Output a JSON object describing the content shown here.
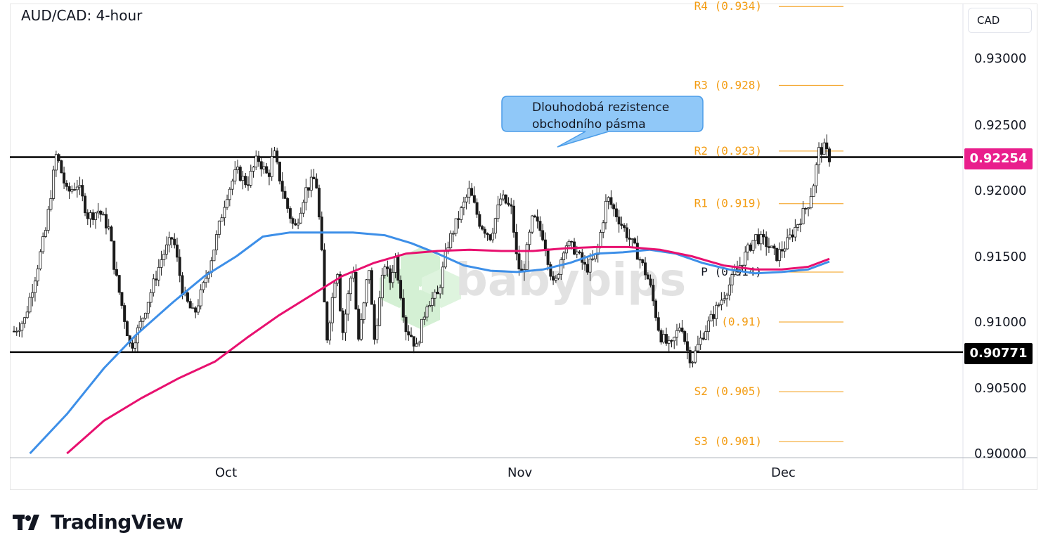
{
  "title": "AUD/CAD: 4-hour",
  "currency_label": "CAD",
  "brand": "TradingView",
  "watermark": "babypips",
  "colors": {
    "up_candle": "#1b1b1b",
    "ma_fast": "#3d8fe8",
    "ma_slow": "#e8106f",
    "pivot": "#f39c12",
    "callout_fill": "#90c8f8",
    "callout_border": "#4a9ce8",
    "current_price_bg": "#e91e8c",
    "support_badge_bg": "#000000"
  },
  "callout": {
    "line1": "Dlouhodobá rezistence",
    "line2": "obchodního pásma"
  },
  "badges": {
    "current_price": "0.92254",
    "support_level": "0.90771"
  },
  "chart_data": {
    "type": "line",
    "title": "AUD/CAD: 4-hour",
    "y_axis": {
      "ylim": [
        0.9,
        0.9355
      ],
      "ticks": [
        "0.93000",
        "0.92500",
        "0.92000",
        "0.91500",
        "0.91000",
        "0.90500",
        "0.90000"
      ]
    },
    "x_axis": {
      "ticks": [
        "Oct",
        "Nov",
        "Dec"
      ]
    },
    "horizontal_levels": [
      {
        "name": "resistance",
        "value": 0.92254
      },
      {
        "name": "support",
        "value": 0.90771
      }
    ],
    "pivot_levels": [
      {
        "label": "R4 (0.934)",
        "value": 0.934
      },
      {
        "label": "R3 (0.928)",
        "value": 0.928
      },
      {
        "label": "R2 (0.923)",
        "value": 0.923
      },
      {
        "label": "R1 (0.919)",
        "value": 0.919
      },
      {
        "label": "P (0.914)",
        "value": 0.9138
      },
      {
        "label": "(0.91)",
        "value": 0.91
      },
      {
        "label": "S2 (0.905)",
        "value": 0.9047
      },
      {
        "label": "S3 (0.901)",
        "value": 0.9009
      }
    ],
    "price_path": [
      [
        0,
        0.9093
      ],
      [
        2,
        0.9102
      ],
      [
        4,
        0.9135
      ],
      [
        6,
        0.917
      ],
      [
        8,
        0.9228
      ],
      [
        10,
        0.9198
      ],
      [
        12,
        0.9205
      ],
      [
        14,
        0.918
      ],
      [
        16,
        0.9185
      ],
      [
        18,
        0.917
      ],
      [
        19,
        0.914
      ],
      [
        21,
        0.91
      ],
      [
        22,
        0.908
      ],
      [
        24,
        0.91
      ],
      [
        26,
        0.9125
      ],
      [
        28,
        0.915
      ],
      [
        30,
        0.9165
      ],
      [
        32,
        0.912
      ],
      [
        34,
        0.9105
      ],
      [
        36,
        0.913
      ],
      [
        38,
        0.916
      ],
      [
        40,
        0.9195
      ],
      [
        42,
        0.9215
      ],
      [
        44,
        0.9205
      ],
      [
        46,
        0.9225
      ],
      [
        48,
        0.921
      ],
      [
        49,
        0.923
      ],
      [
        51,
        0.9195
      ],
      [
        53,
        0.917
      ],
      [
        55,
        0.92
      ],
      [
        57,
        0.921
      ],
      [
        58,
        0.916
      ],
      [
        59,
        0.9085
      ],
      [
        61,
        0.9145
      ],
      [
        62,
        0.909
      ],
      [
        64,
        0.9145
      ],
      [
        65,
        0.9085
      ],
      [
        66,
        0.911
      ],
      [
        67,
        0.9145
      ],
      [
        68,
        0.9085
      ],
      [
        70,
        0.9145
      ],
      [
        71,
        0.913
      ],
      [
        72,
        0.915
      ],
      [
        74,
        0.9095
      ],
      [
        75,
        0.909
      ],
      [
        76,
        0.908
      ],
      [
        78,
        0.9115
      ],
      [
        80,
        0.912
      ],
      [
        82,
        0.916
      ],
      [
        84,
        0.918
      ],
      [
        86,
        0.92
      ],
      [
        88,
        0.9175
      ],
      [
        90,
        0.9165
      ],
      [
        92,
        0.9195
      ],
      [
        94,
        0.9185
      ],
      [
        95,
        0.9145
      ],
      [
        96,
        0.9135
      ],
      [
        98,
        0.918
      ],
      [
        100,
        0.9165
      ],
      [
        102,
        0.9125
      ],
      [
        104,
        0.916
      ],
      [
        106,
        0.9155
      ],
      [
        108,
        0.914
      ],
      [
        110,
        0.915
      ],
      [
        112,
        0.9195
      ],
      [
        114,
        0.918
      ],
      [
        116,
        0.9165
      ],
      [
        118,
        0.915
      ],
      [
        120,
        0.913
      ],
      [
        122,
        0.909
      ],
      [
        124,
        0.908
      ],
      [
        126,
        0.91
      ],
      [
        127,
        0.908
      ],
      [
        128,
        0.907
      ],
      [
        130,
        0.909
      ],
      [
        132,
        0.9105
      ],
      [
        134,
        0.912
      ],
      [
        136,
        0.9135
      ],
      [
        138,
        0.915
      ],
      [
        140,
        0.9165
      ],
      [
        142,
        0.916
      ],
      [
        144,
        0.915
      ],
      [
        146,
        0.916
      ],
      [
        148,
        0.9175
      ],
      [
        150,
        0.919
      ],
      [
        151,
        0.9205
      ],
      [
        152,
        0.923
      ],
      [
        153,
        0.9232
      ],
      [
        154,
        0.9225
      ]
    ],
    "series": [
      {
        "name": "",
        "role": "moving average (blue)",
        "values": [
          [
            3,
            0.9
          ],
          [
            10,
            0.903
          ],
          [
            17,
            0.9065
          ],
          [
            23,
            0.909
          ],
          [
            30,
            0.9115
          ],
          [
            36,
            0.9135
          ],
          [
            42,
            0.915
          ],
          [
            47,
            0.9165
          ],
          [
            52,
            0.9168
          ],
          [
            58,
            0.9168
          ],
          [
            64,
            0.9168
          ],
          [
            70,
            0.9166
          ],
          [
            75,
            0.916
          ],
          [
            80,
            0.9152
          ],
          [
            85,
            0.9143
          ],
          [
            90,
            0.9139
          ],
          [
            95,
            0.9138
          ],
          [
            100,
            0.914
          ],
          [
            105,
            0.9145
          ],
          [
            110,
            0.9152
          ],
          [
            115,
            0.9153
          ],
          [
            120,
            0.9155
          ],
          [
            125,
            0.9152
          ],
          [
            130,
            0.9145
          ],
          [
            135,
            0.914
          ],
          [
            140,
            0.9137
          ],
          [
            145,
            0.9138
          ],
          [
            150,
            0.914
          ],
          [
            154,
            0.9146
          ]
        ]
      },
      {
        "name": "",
        "role": "moving average (magenta)",
        "values": [
          [
            10,
            0.9
          ],
          [
            17,
            0.9025
          ],
          [
            24,
            0.9042
          ],
          [
            31,
            0.9057
          ],
          [
            38,
            0.907
          ],
          [
            44,
            0.9088
          ],
          [
            50,
            0.9105
          ],
          [
            56,
            0.912
          ],
          [
            62,
            0.9135
          ],
          [
            68,
            0.9145
          ],
          [
            74,
            0.9152
          ],
          [
            80,
            0.9154
          ],
          [
            86,
            0.9155
          ],
          [
            92,
            0.9154
          ],
          [
            98,
            0.9154
          ],
          [
            104,
            0.9156
          ],
          [
            110,
            0.9157
          ],
          [
            116,
            0.9157
          ],
          [
            122,
            0.9155
          ],
          [
            128,
            0.915
          ],
          [
            134,
            0.9143
          ],
          [
            140,
            0.914
          ],
          [
            145,
            0.914
          ],
          [
            150,
            0.9142
          ],
          [
            154,
            0.9148
          ]
        ]
      }
    ],
    "x_range": [
      0,
      184
    ],
    "grid": false,
    "legend": "none"
  }
}
